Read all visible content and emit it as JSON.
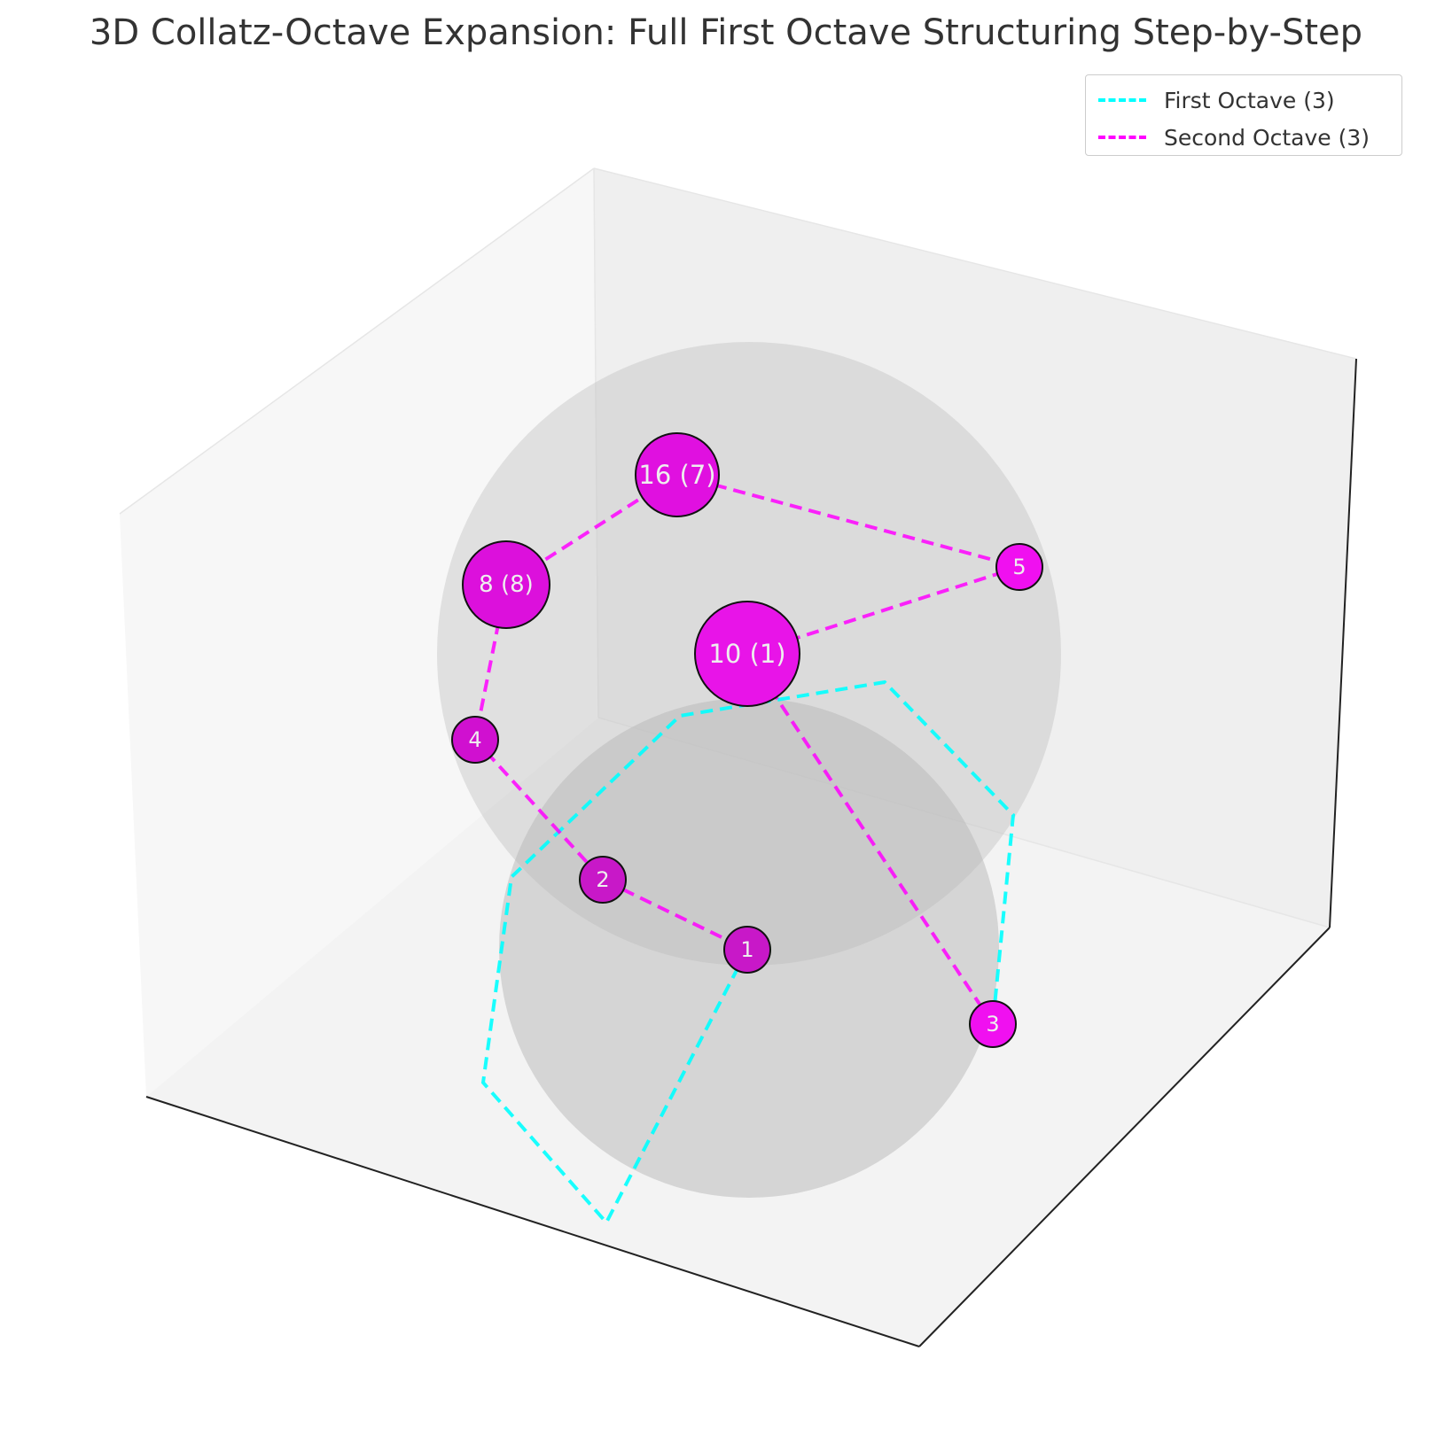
{
  "chart_data": {
    "type": "scatter",
    "title": "3D Collatz-Octave Expansion: Full First Octave Structuring Step-by-Step",
    "legend": {
      "placement": "top-right",
      "entries": [
        {
          "label": "First Octave (3)",
          "color": "#00ffff",
          "style": "dashed"
        },
        {
          "label": "Second Octave (3)",
          "color": "#ff00ff",
          "style": "dashed"
        }
      ]
    },
    "grid": false,
    "axes_visible": false,
    "nodes": [
      {
        "label": "16 (7)",
        "value": 16,
        "order": 7,
        "color": "#e010e0"
      },
      {
        "label": "8 (8)",
        "value": 8,
        "order": 8,
        "color": "#dc10dc"
      },
      {
        "label": "5",
        "value": 5,
        "order": null,
        "color": "#f010f0"
      },
      {
        "label": "10 (1)",
        "value": 10,
        "order": 1,
        "color": "#e814e8"
      },
      {
        "label": "4",
        "value": 4,
        "order": null,
        "color": "#d010d0"
      },
      {
        "label": "2",
        "value": 2,
        "order": null,
        "color": "#c818c8"
      },
      {
        "label": "1",
        "value": 1,
        "order": null,
        "color": "#c818c8"
      },
      {
        "label": "3",
        "value": 3,
        "order": null,
        "color": "#f010f0"
      }
    ],
    "series": [
      {
        "name": "Second Octave (3)",
        "color": "#ff00ff",
        "path": [
          "3",
          "10 (1)",
          "5",
          "16 (7)",
          "8 (8)",
          "4",
          "2",
          "1"
        ]
      },
      {
        "name": "First Octave (3)",
        "color": "#00ffff",
        "path": []
      }
    ],
    "spheres": 2
  }
}
